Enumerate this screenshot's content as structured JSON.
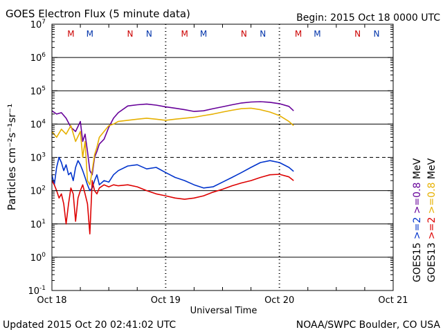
{
  "chart_data": {
    "type": "line",
    "title": "GOES Electron Flux (5 minute data)",
    "begin_label": "Begin: 2015 Oct 18 0000 UTC",
    "xlabel": "Universal Time",
    "ylabel": "Particles cm⁻²s⁻¹sr⁻¹",
    "y_scale": "log",
    "ylim": [
      0.1,
      10000000
    ],
    "y_ticks": [
      {
        "value": 0.1,
        "base": "10",
        "exp": "-1"
      },
      {
        "value": 1,
        "base": "10",
        "exp": "0"
      },
      {
        "value": 10,
        "base": "10",
        "exp": "1"
      },
      {
        "value": 100,
        "base": "10",
        "exp": "2"
      },
      {
        "value": 1000,
        "base": "10",
        "exp": "3"
      },
      {
        "value": 10000,
        "base": "10",
        "exp": "4"
      },
      {
        "value": 100000,
        "base": "10",
        "exp": "5"
      },
      {
        "value": 1000000,
        "base": "10",
        "exp": "6"
      },
      {
        "value": 10000000,
        "base": "10",
        "exp": "7"
      }
    ],
    "x_unit": "hours since Oct 18 00:00 UTC",
    "xlim": [
      0,
      72
    ],
    "x_ticks": [
      {
        "value": 0,
        "label": "Oct 18"
      },
      {
        "value": 24,
        "label": "Oct 19"
      },
      {
        "value": 48,
        "label": "Oct 20"
      },
      {
        "value": 72,
        "label": "Oct 21"
      }
    ],
    "grid": true,
    "threshold_line": {
      "value": 1000,
      "style": "dashed"
    },
    "local_time_markers": [
      {
        "x": 4.0,
        "label": "M",
        "color": "#cc0000"
      },
      {
        "x": 8.0,
        "label": "M",
        "color": "#0033aa"
      },
      {
        "x": 16.5,
        "label": "N",
        "color": "#cc0000"
      },
      {
        "x": 20.5,
        "label": "N",
        "color": "#0033aa"
      },
      {
        "x": 28.0,
        "label": "M",
        "color": "#cc0000"
      },
      {
        "x": 32.0,
        "label": "M",
        "color": "#0033aa"
      },
      {
        "x": 40.5,
        "label": "N",
        "color": "#cc0000"
      },
      {
        "x": 44.5,
        "label": "N",
        "color": "#0033aa"
      },
      {
        "x": 52.0,
        "label": "M",
        "color": "#cc0000"
      },
      {
        "x": 56.0,
        "label": "M",
        "color": "#0033aa"
      },
      {
        "x": 64.5,
        "label": "N",
        "color": "#cc0000"
      },
      {
        "x": 68.5,
        "label": "N",
        "color": "#0033aa"
      }
    ],
    "legend": [
      {
        "satellite": "GOES15",
        "items": [
          {
            "text": ">=2",
            "color": "#0033cc"
          },
          {
            "text": ">=0.8",
            "color": "#660099"
          },
          {
            "text": "MeV",
            "color": "#000000"
          }
        ]
      },
      {
        "satellite": "GOES13",
        "items": [
          {
            "text": ">=2",
            "color": "#dd0000"
          },
          {
            "text": ">=0.8",
            "color": "#e6b000"
          },
          {
            "text": "MeV",
            "color": "#000000"
          }
        ]
      }
    ],
    "series": [
      {
        "name": "GOES15 >=0.8 MeV",
        "color": "#660099",
        "x": [
          0,
          1,
          2,
          3,
          4,
          5,
          6,
          6.5,
          7,
          7.5,
          8,
          8.5,
          9,
          9.5,
          10,
          11,
          12,
          13,
          14,
          16,
          18,
          20,
          22,
          24,
          26,
          28,
          30,
          32,
          34,
          36,
          38,
          40,
          42,
          44,
          46,
          48,
          50,
          51
        ],
        "y": [
          25000,
          20000,
          22000,
          15000,
          8000,
          6000,
          12000,
          3000,
          5000,
          1500,
          400,
          300,
          1000,
          1500,
          2500,
          3500,
          8000,
          15000,
          22000,
          35000,
          38000,
          40000,
          37000,
          33000,
          30000,
          27000,
          24000,
          25000,
          29000,
          33000,
          38000,
          43000,
          46000,
          47000,
          45000,
          41000,
          34000,
          25000
        ]
      },
      {
        "name": "GOES13 >=0.8 MeV",
        "color": "#e6b000",
        "x": [
          0,
          1,
          2,
          3,
          4,
          5,
          6,
          6.5,
          7,
          7.5,
          8,
          8.5,
          9,
          9.5,
          10,
          11,
          12,
          13,
          14,
          16,
          18,
          20,
          22,
          24,
          26,
          28,
          30,
          32,
          34,
          36,
          38,
          40,
          42,
          44,
          46,
          48,
          50,
          51
        ],
        "y": [
          6000,
          4000,
          7000,
          5000,
          9000,
          3000,
          6000,
          1000,
          3000,
          200,
          150,
          400,
          1200,
          2000,
          4000,
          6000,
          9000,
          10000,
          12000,
          13000,
          14000,
          15000,
          14000,
          13000,
          14000,
          15000,
          16000,
          18000,
          20000,
          23000,
          26000,
          29000,
          30000,
          27000,
          23000,
          18000,
          12000,
          9000
        ]
      },
      {
        "name": "GOES15 >=2 MeV",
        "color": "#0033cc",
        "x": [
          0,
          0.5,
          1,
          1.5,
          2,
          2.5,
          3,
          3.5,
          4,
          4.5,
          5,
          5.5,
          6,
          6.5,
          7,
          7.5,
          8,
          8.5,
          9,
          9.5,
          10,
          11,
          12,
          13,
          14,
          16,
          18,
          20,
          22,
          24,
          26,
          28,
          30,
          32,
          34,
          36,
          38,
          40,
          42,
          44,
          46,
          48,
          50,
          51
        ],
        "y": [
          300,
          150,
          500,
          1000,
          700,
          400,
          600,
          300,
          350,
          200,
          500,
          800,
          600,
          400,
          250,
          150,
          100,
          120,
          200,
          300,
          150,
          200,
          180,
          300,
          400,
          550,
          600,
          450,
          500,
          350,
          250,
          200,
          150,
          120,
          130,
          180,
          250,
          350,
          500,
          700,
          800,
          700,
          500,
          380
        ]
      },
      {
        "name": "GOES13 >=2 MeV",
        "color": "#dd0000",
        "x": [
          0,
          0.5,
          1,
          1.5,
          2,
          2.5,
          3,
          3.5,
          4,
          4.5,
          5,
          5.5,
          6,
          6.5,
          7,
          7.5,
          8,
          8.5,
          9,
          9.5,
          10,
          11,
          12,
          13,
          14,
          16,
          18,
          20,
          22,
          24,
          26,
          28,
          30,
          32,
          34,
          36,
          38,
          40,
          42,
          44,
          46,
          48,
          50,
          51
        ],
        "y": [
          200,
          150,
          100,
          60,
          80,
          40,
          10,
          40,
          120,
          80,
          12,
          60,
          100,
          150,
          80,
          40,
          5,
          200,
          100,
          80,
          120,
          150,
          130,
          150,
          140,
          150,
          130,
          100,
          80,
          70,
          60,
          55,
          60,
          70,
          90,
          110,
          140,
          170,
          200,
          250,
          300,
          310,
          260,
          200
        ]
      }
    ]
  },
  "footer": {
    "updated": "Updated 2015 Oct 20 02:41:02 UTC",
    "credit": "NOAA/SWPC Boulder, CO USA"
  }
}
